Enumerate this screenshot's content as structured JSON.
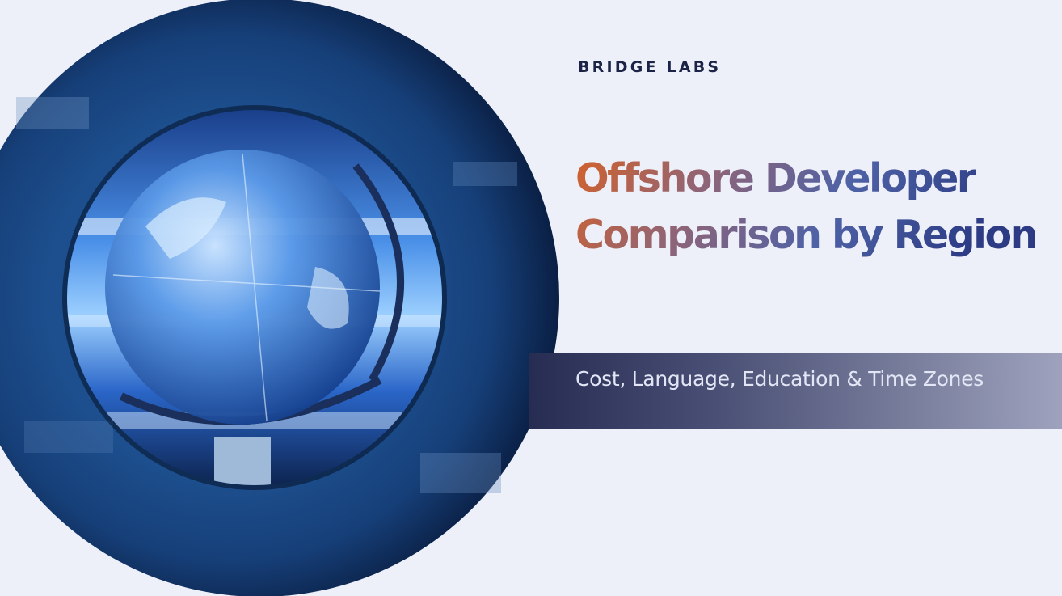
{
  "brand": {
    "logo_text": "BRIDGE LABS"
  },
  "hero": {
    "title": "Offshore Developer Comparison by Region",
    "subtitle": "Cost, Language, Education & Time Zones",
    "image": "crystal-globe-photo"
  },
  "colors": {
    "background": "#eef0f9",
    "title_gradient_start": "#d4622a",
    "title_gradient_end": "#2c3b84",
    "banner_start": "#262c52",
    "banner_end": "#9ea2bd",
    "logo": "#1b2447"
  }
}
